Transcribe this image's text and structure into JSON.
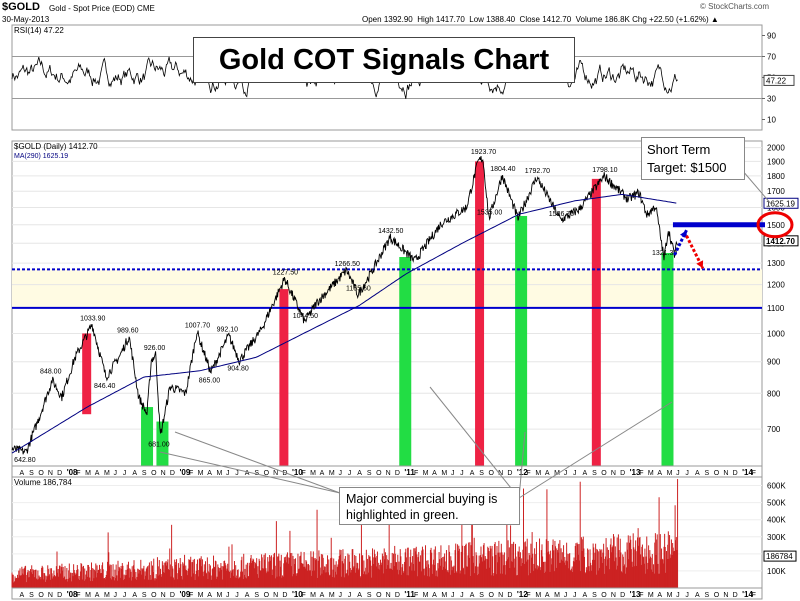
{
  "header": {
    "symbol": "$GOLD",
    "name": "Gold - Spot Price (EOD)",
    "exchange": "CME",
    "date": "30-May-2013",
    "open_label": "Open",
    "open": "1392.90",
    "high_label": "High",
    "high": "1417.70",
    "low_label": "Low",
    "low": "1388.40",
    "close_label": "Close",
    "close": "1412.70",
    "volume_label": "Volume",
    "volume": "186.8K",
    "chg_label": "Chg",
    "chg": "+22.50 (+1.62%)",
    "copyright": "© StockCharts.com"
  },
  "title_box": "Gold COT Signals Chart",
  "callout_target": {
    "line1": "Short Term",
    "line2": "Target: $1500"
  },
  "callout_buying": {
    "line1": "Major commercial buying is",
    "line2": "highlighted in green."
  },
  "colors": {
    "price": "#000000",
    "ma": "#000080",
    "level_lines": "#0000cc",
    "red_bar": "#ee2244",
    "green_bar": "#22dd44",
    "volume": "#cc2222",
    "circle": "#ee0000",
    "arrow_up": "#0000cc",
    "arrow_down": "#ee0000",
    "band": "#fffbe3"
  },
  "chart_data": [
    {
      "type": "line",
      "title": "RSI(14) 47.22",
      "series": [
        {
          "name": "RSI(14)",
          "last": 47.22
        }
      ],
      "yticks": [
        10,
        30,
        50,
        70,
        90
      ],
      "ylim": [
        0,
        100
      ],
      "overlay_lines": [
        30,
        70
      ],
      "last_label": "47.22"
    },
    {
      "type": "line",
      "title": "$GOLD (Daily) 1412.70",
      "legend": "MA(290) 1625.19",
      "y_scale": "log",
      "ylim": [
        610,
        2050
      ],
      "yticks": [
        700,
        800,
        900,
        1000,
        1100,
        1200,
        1300,
        1400,
        1500,
        1600,
        1700,
        1800,
        1900,
        2000
      ],
      "right_labels": [
        "1625.19",
        "1412.70"
      ],
      "x_axis": {
        "start": "2007-07-01",
        "end": "2014-02-28"
      },
      "series": [
        {
          "name": "$GOLD",
          "anchors": [
            [
              "2007-07-01",
              650
            ],
            [
              "2007-08-16",
              642.8
            ],
            [
              "2007-10-01",
              740
            ],
            [
              "2007-11-08",
              840
            ],
            [
              "2007-12-10",
              790
            ],
            [
              "2008-01-20",
              910
            ],
            [
              "2008-03-17",
              1033.9
            ],
            [
              "2008-05-01",
              850
            ],
            [
              "2008-06-15",
              920
            ],
            [
              "2008-07-15",
              989.6
            ],
            [
              "2008-08-15",
              790
            ],
            [
              "2008-09-11",
              740
            ],
            [
              "2008-09-25",
              905
            ],
            [
              "2008-10-10",
              926
            ],
            [
              "2008-10-24",
              681
            ],
            [
              "2008-11-25",
              820
            ],
            [
              "2009-01-15",
              800
            ],
            [
              "2009-02-20",
              1007.7
            ],
            [
              "2009-04-06",
              865
            ],
            [
              "2009-06-03",
              992.1
            ],
            [
              "2009-07-08",
              904.8
            ],
            [
              "2009-09-15",
              1010
            ],
            [
              "2009-12-02",
              1227.5
            ],
            [
              "2010-02-05",
              1044.5
            ],
            [
              "2010-03-15",
              1120
            ],
            [
              "2010-06-21",
              1266.5
            ],
            [
              "2010-07-28",
              1155.6
            ],
            [
              "2010-09-15",
              1270
            ],
            [
              "2010-11-09",
              1432.5
            ],
            [
              "2011-01-28",
              1310
            ],
            [
              "2011-04-25",
              1510
            ],
            [
              "2011-07-15",
              1600
            ],
            [
              "2011-08-22",
              1900
            ],
            [
              "2011-09-06",
              1923.7
            ],
            [
              "2011-09-26",
              1535
            ],
            [
              "2011-11-08",
              1804.4
            ],
            [
              "2011-12-29",
              1535
            ],
            [
              "2012-02-28",
              1792.7
            ],
            [
              "2012-05-16",
              1526.7
            ],
            [
              "2012-07-15",
              1590
            ],
            [
              "2012-10-04",
              1798.1
            ],
            [
              "2012-12-20",
              1650
            ],
            [
              "2013-01-25",
              1690
            ],
            [
              "2013-02-20",
              1555
            ],
            [
              "2013-03-20",
              1610
            ],
            [
              "2013-04-16",
              1321.3
            ],
            [
              "2013-04-30",
              1475
            ],
            [
              "2013-05-20",
              1340
            ],
            [
              "2013-05-30",
              1412.7
            ]
          ]
        },
        {
          "name": "MA(290)",
          "anchors": [
            [
              "2007-07-01",
              640
            ],
            [
              "2008-03-01",
              760
            ],
            [
              "2008-09-01",
              850
            ],
            [
              "2009-03-01",
              870
            ],
            [
              "2009-09-01",
              915
            ],
            [
              "2010-02-01",
              1000
            ],
            [
              "2010-08-01",
              1110
            ],
            [
              "2011-01-01",
              1250
            ],
            [
              "2011-07-01",
              1400
            ],
            [
              "2012-01-01",
              1560
            ],
            [
              "2012-07-01",
              1640
            ],
            [
              "2012-12-01",
              1680
            ],
            [
              "2013-05-30",
              1625.19
            ]
          ]
        }
      ],
      "annotations": [
        [
          "2007-08-16",
          "642.80"
        ],
        [
          "2007-11-08",
          "848.00"
        ],
        [
          "2008-03-17",
          "1033.90"
        ],
        [
          "2008-05-01",
          "846.40"
        ],
        [
          "2008-07-15",
          "989.60"
        ],
        [
          "2008-10-10",
          "926.00"
        ],
        [
          "2008-10-24",
          "681.00"
        ],
        [
          "2009-02-20",
          "1007.70"
        ],
        [
          "2009-04-06",
          "865.00"
        ],
        [
          "2009-06-03",
          "992.10"
        ],
        [
          "2009-07-08",
          "904.80"
        ],
        [
          "2009-12-02",
          "1227.50"
        ],
        [
          "2010-02-05",
          "1044.50"
        ],
        [
          "2010-06-21",
          "1266.50"
        ],
        [
          "2010-07-28",
          "1155.60"
        ],
        [
          "2010-11-09",
          "1432.50"
        ],
        [
          "2011-09-06",
          "1923.70"
        ],
        [
          "2011-09-26",
          "1535.00"
        ],
        [
          "2011-11-08",
          "1804.40"
        ],
        [
          "2012-02-28",
          "1792.70"
        ],
        [
          "2012-05-16",
          "1526.70"
        ],
        [
          "2012-10-04",
          "1798.10"
        ],
        [
          "2013-04-16",
          "1321.30"
        ]
      ],
      "horizontal_lines": [
        {
          "value": 1270,
          "style": "dotted"
        },
        {
          "value": 1100,
          "style": "solid"
        },
        {
          "value": 1500,
          "style": "target",
          "from": "2013-05-15"
        }
      ],
      "signal_bars": [
        {
          "color": "red",
          "date": "2008-03-01",
          "from": 740,
          "to": 1000
        },
        {
          "color": "green",
          "date": "2008-09-08",
          "from": 610,
          "to": 760
        },
        {
          "color": "green",
          "date": "2008-10-28",
          "from": 610,
          "to": 720
        },
        {
          "color": "red",
          "date": "2009-12-01",
          "from": 610,
          "to": 1180
        },
        {
          "color": "green",
          "date": "2010-12-25",
          "from": 610,
          "to": 1330
        },
        {
          "color": "red",
          "date": "2011-08-28",
          "from": 610,
          "to": 1900
        },
        {
          "color": "green",
          "date": "2012-01-05",
          "from": 610,
          "to": 1550
        },
        {
          "color": "red",
          "date": "2012-09-10",
          "from": 610,
          "to": 1780
        },
        {
          "color": "green",
          "date": "2013-04-24",
          "from": 610,
          "to": 1350
        }
      ],
      "arrows": [
        {
          "color": "blue",
          "from": [
            "2013-05-20",
            1340
          ],
          "to": [
            "2013-06-28",
            1470
          ]
        },
        {
          "color": "red",
          "from": [
            "2013-06-28",
            1440
          ],
          "to": [
            "2013-08-20",
            1275
          ]
        }
      ],
      "tick_labels": [
        "F",
        "M",
        "A",
        "M",
        "J",
        "J",
        "A",
        "S",
        "O",
        "N",
        "D",
        "'08",
        "'09",
        "'10",
        "'11",
        "'12",
        "'13",
        "'14"
      ]
    },
    {
      "type": "bar",
      "title": "Volume 186,784",
      "yticks": [
        "600K",
        "500K",
        "400K",
        "300K",
        "200K",
        "100K"
      ],
      "tick_values": [
        600000,
        500000,
        400000,
        300000,
        200000,
        100000
      ],
      "right_label": "186784",
      "last": 186784
    }
  ]
}
